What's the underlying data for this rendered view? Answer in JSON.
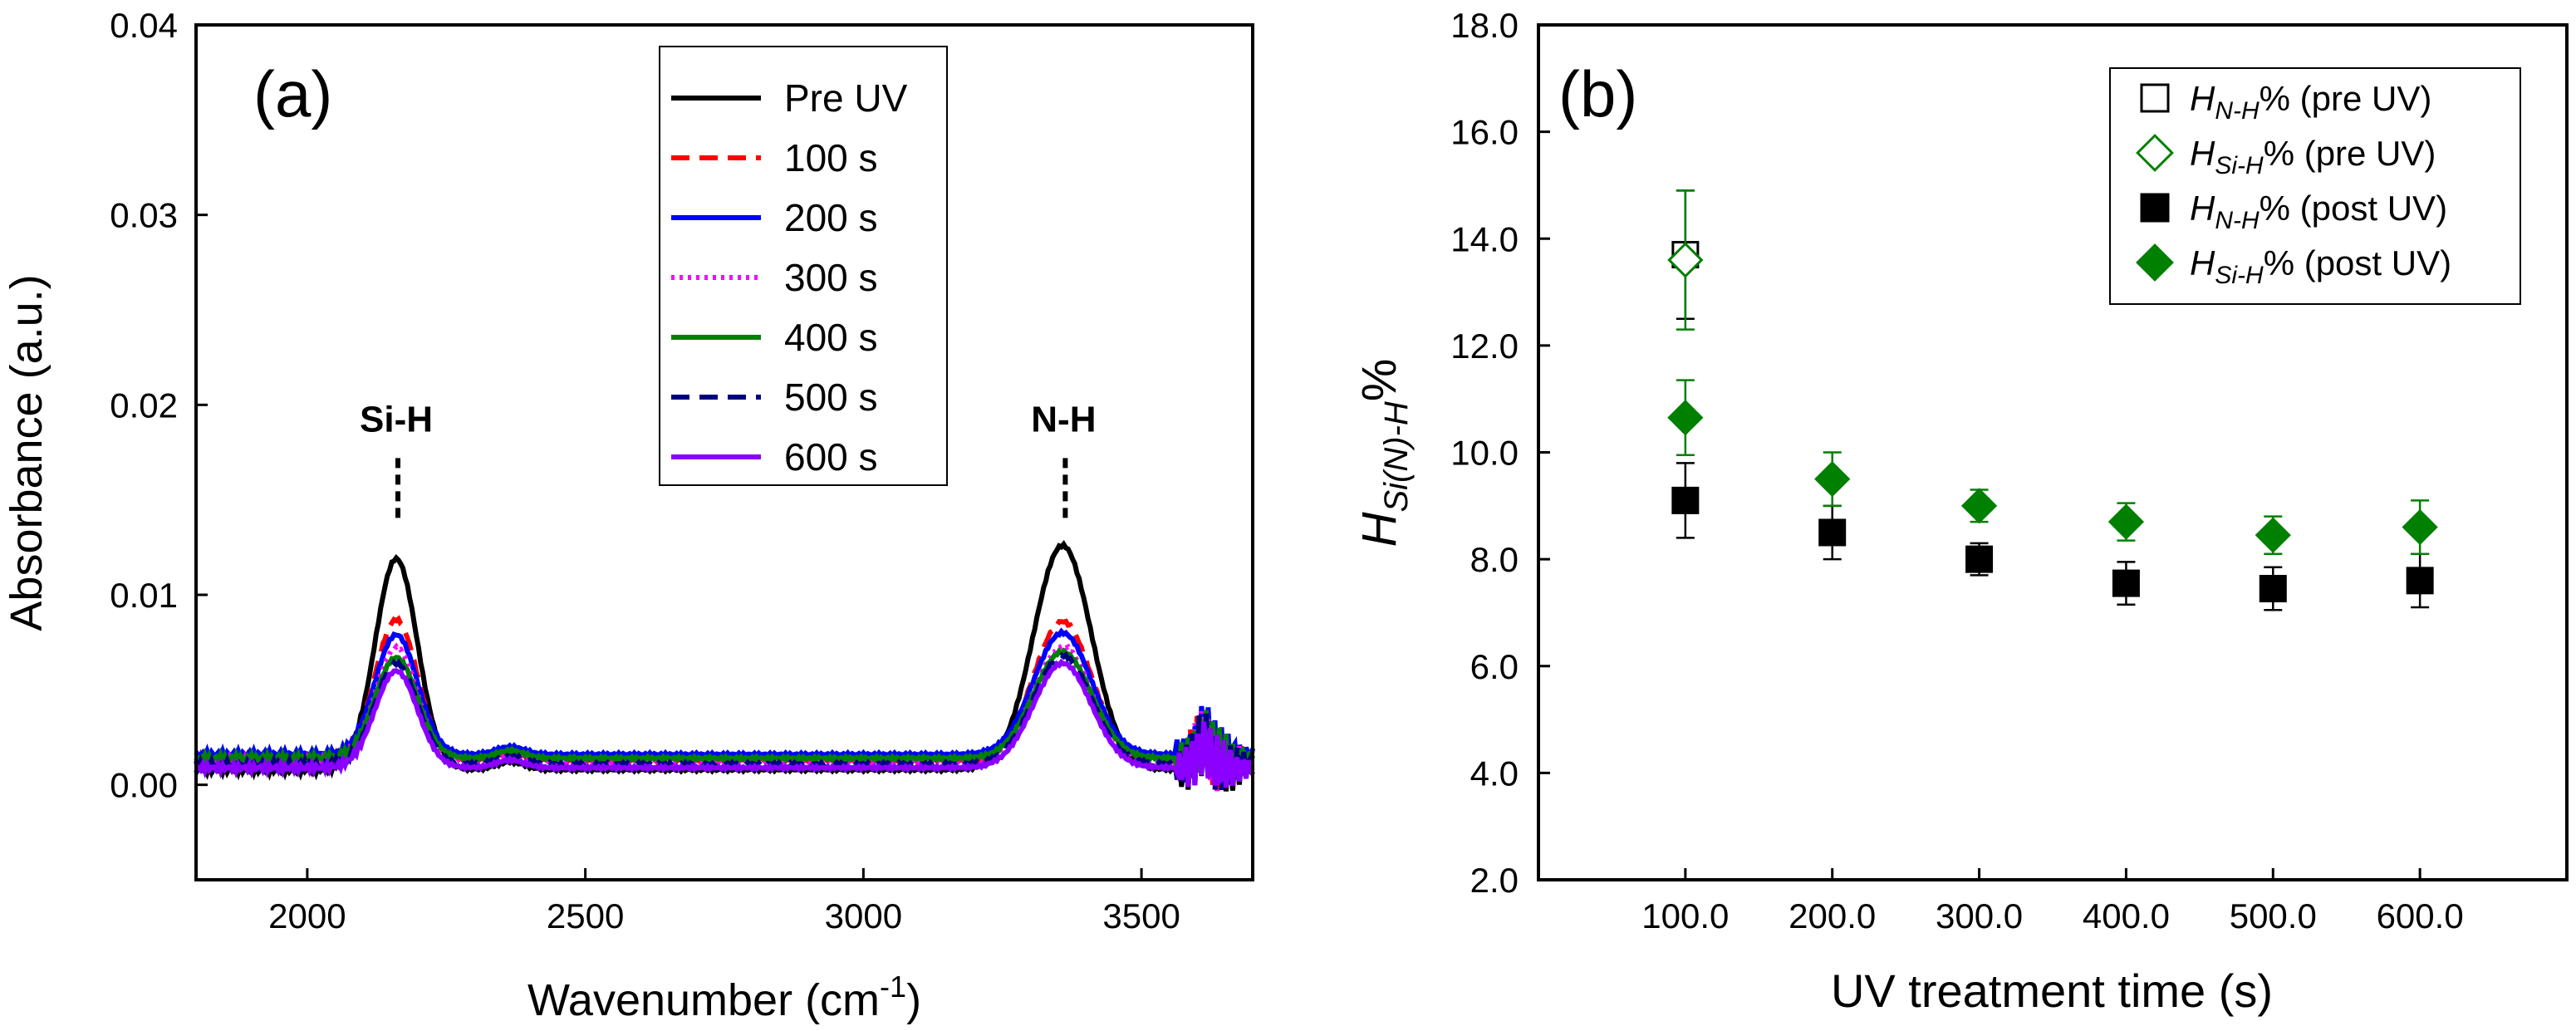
{
  "chart_data": [
    {
      "panel": "(a)",
      "type": "line",
      "xlabel": "Wavenumber (cm",
      "xlabel_sup": "-1",
      "xlabel_close": ")",
      "ylabel": "Absorbance (a.u.)",
      "xlim": [
        1800,
        3700
      ],
      "ylim": [
        -0.005,
        0.04
      ],
      "xticks": [
        2000,
        2500,
        3000,
        3500
      ],
      "xtick_labels": [
        "2000",
        "2500",
        "3000",
        "3500"
      ],
      "yticks": [
        0,
        0.01,
        0.02,
        0.03,
        0.04
      ],
      "ytick_labels": [
        "0.00",
        "0.01",
        "0.02",
        "0.03",
        "0.04"
      ],
      "legend_position": "top-center",
      "annotations": [
        {
          "text": "Si-H",
          "x": 2160,
          "y": 0.0186
        },
        {
          "text": "N-H",
          "x": 3360,
          "y": 0.0186
        }
      ],
      "grid": false,
      "series": [
        {
          "name": "Pre UV",
          "color": "#000000",
          "dash": "solid",
          "baseline": 0.0008,
          "si_h_peak": 0.0119,
          "n_h_peak": 0.0126
        },
        {
          "name": "100 s",
          "color": "#ff0000",
          "dash": "dashed",
          "baseline": 0.0013,
          "si_h_peak": 0.0087,
          "n_h_peak": 0.0086
        },
        {
          "name": "200 s",
          "color": "#0000ff",
          "dash": "solid",
          "baseline": 0.0016,
          "si_h_peak": 0.0079,
          "n_h_peak": 0.008
        },
        {
          "name": "300 s",
          "color": "#ff00ff",
          "dash": "dotted",
          "baseline": 0.0012,
          "si_h_peak": 0.0072,
          "n_h_peak": 0.0073
        },
        {
          "name": "400 s",
          "color": "#008000",
          "dash": "solid",
          "baseline": 0.0014,
          "si_h_peak": 0.0067,
          "n_h_peak": 0.007
        },
        {
          "name": "500 s",
          "color": "#000080",
          "dash": "dashed",
          "baseline": 0.0011,
          "si_h_peak": 0.0064,
          "n_h_peak": 0.0068
        },
        {
          "name": "600 s",
          "color": "#8b00ff",
          "dash": "solid",
          "baseline": 0.0009,
          "si_h_peak": 0.006,
          "n_h_peak": 0.0064
        }
      ]
    },
    {
      "panel": "(b)",
      "type": "scatter",
      "xlabel": "UV treatment time (s)",
      "ylabel_main": "H",
      "ylabel_sub": "Si(N)-H",
      "ylabel_tail": "%",
      "xlim": [
        0,
        700
      ],
      "ylim": [
        2.0,
        18.0
      ],
      "xticks": [
        100,
        200,
        300,
        400,
        500,
        600
      ],
      "xtick_labels": [
        "100.0",
        "200.0",
        "300.0",
        "400.0",
        "500.0",
        "600.0"
      ],
      "yticks": [
        2,
        4,
        6,
        8,
        10,
        12,
        14,
        16,
        18
      ],
      "ytick_labels": [
        "2.0",
        "4.0",
        "6.0",
        "8.0",
        "10.0",
        "12.0",
        "14.0",
        "16.0",
        "18.0"
      ],
      "legend_position": "top-right",
      "grid": false,
      "series": [
        {
          "name_main": "H",
          "name_sub": "N-H",
          "name_tail": "% (pre UV)",
          "marker": "square",
          "filled": false,
          "color": "#000000",
          "points": [
            {
              "x": 100,
              "y": 13.7,
              "err": 1.2
            }
          ]
        },
        {
          "name_main": "H",
          "name_sub": "Si-H",
          "name_tail": "% (pre UV)",
          "marker": "diamond",
          "filled": false,
          "color": "#008000",
          "points": [
            {
              "x": 100,
              "y": 13.6,
              "err": 1.3
            }
          ]
        },
        {
          "name_main": "H",
          "name_sub": "N-H",
          "name_tail": "% (post UV)",
          "marker": "square",
          "filled": true,
          "color": "#000000",
          "points": [
            {
              "x": 100,
              "y": 9.1,
              "err": 0.7
            },
            {
              "x": 200,
              "y": 8.5,
              "err": 0.5
            },
            {
              "x": 300,
              "y": 8.0,
              "err": 0.3
            },
            {
              "x": 400,
              "y": 7.55,
              "err": 0.4
            },
            {
              "x": 500,
              "y": 7.45,
              "err": 0.4
            },
            {
              "x": 600,
              "y": 7.6,
              "err": 0.5
            }
          ]
        },
        {
          "name_main": "H",
          "name_sub": "Si-H",
          "name_tail": "% (post UV)",
          "marker": "diamond",
          "filled": true,
          "color": "#008000",
          "points": [
            {
              "x": 100,
              "y": 10.65,
              "err": 0.7
            },
            {
              "x": 200,
              "y": 9.5,
              "err": 0.5
            },
            {
              "x": 300,
              "y": 9.0,
              "err": 0.3
            },
            {
              "x": 400,
              "y": 8.7,
              "err": 0.35
            },
            {
              "x": 500,
              "y": 8.45,
              "err": 0.35
            },
            {
              "x": 600,
              "y": 8.6,
              "err": 0.5
            }
          ]
        }
      ]
    }
  ]
}
